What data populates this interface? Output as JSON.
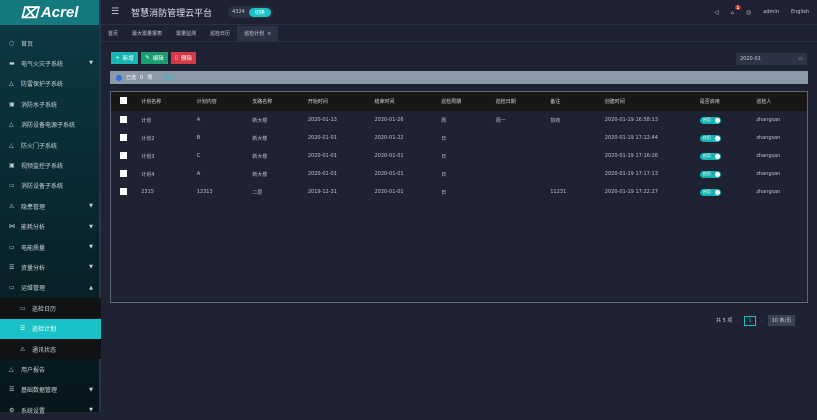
{
  "app": {
    "logo": "Acrel",
    "title": "智慧消防管理云平台",
    "count": "4324",
    "count_badge": "切换"
  },
  "header": {
    "user": "admin",
    "language": "English",
    "notification_count": "1"
  },
  "sidebar": {
    "items": [
      {
        "label": "首页",
        "icon": "home",
        "y": 43
      },
      {
        "label": "电气火灾子系统",
        "icon": "fire",
        "chevron": true
      },
      {
        "label": "防雷保护子系统",
        "icon": "shield"
      },
      {
        "label": "消防水子系统",
        "icon": "water"
      },
      {
        "label": "消防设备电源子系统",
        "icon": "power"
      },
      {
        "label": "防火门子系统",
        "icon": "door"
      },
      {
        "label": "视频监控子系统",
        "icon": "video"
      },
      {
        "label": "消防设备子系统",
        "icon": "camera"
      },
      {
        "label": "隐患管理",
        "icon": "warning",
        "chevron": true
      },
      {
        "label": "能耗分析",
        "icon": "chart",
        "chevron": true
      },
      {
        "label": "电能质量",
        "icon": "meter",
        "chevron": true
      },
      {
        "label": "资量分析",
        "icon": "list",
        "chevron": true
      },
      {
        "label": "运维管理",
        "icon": "tools",
        "chevron": true,
        "expanded": true
      },
      {
        "label": "巡检日历",
        "icon": "calendar",
        "sub": true
      },
      {
        "label": "巡检计划",
        "icon": "plan",
        "sub": true,
        "active": true
      },
      {
        "label": "通讯状态",
        "icon": "signal",
        "sub": true
      },
      {
        "label": "用户报告",
        "icon": "report"
      },
      {
        "label": "基础数据管理",
        "icon": "database",
        "chevron": true
      },
      {
        "label": "系统设置",
        "icon": "gear",
        "chevron": true
      }
    ]
  },
  "tabs": [
    {
      "label": "首页"
    },
    {
      "label": "最大需量报表"
    },
    {
      "label": "需量监测"
    },
    {
      "label": "巡检日历"
    },
    {
      "label": "巡检计划",
      "active": true
    }
  ],
  "toolbar": {
    "add": "新增",
    "edit": "编辑",
    "delete": "删除",
    "date": "2020-01"
  },
  "alert": {
    "selected": "已选",
    "count": "0",
    "unit": "项",
    "clear": "清空"
  },
  "table": {
    "columns": [
      "计划名称",
      "计划内容",
      "支路名称",
      "开始时间",
      "结束时间",
      "巡检周期",
      "巡检日期",
      "备注",
      "创建时间",
      "是否启用",
      "巡检人"
    ],
    "rows": [
      [
        "计划",
        "A",
        "新大楼",
        "2020-01-13",
        "2020-01-26",
        "周",
        "周一",
        "协商",
        "2020-01-19 16:58:13",
        "启用",
        "zhangsan"
      ],
      [
        "计划2",
        "B",
        "新大楼",
        "2020-01-01",
        "2020-01-22",
        "日",
        "",
        "",
        "2020-01-19 17:12:44",
        "启用",
        "zhangsan"
      ],
      [
        "计划3",
        "C",
        "新大楼",
        "2020-01-01",
        "2020-01-01",
        "日",
        "",
        "",
        "2020-01-19 17:16:26",
        "启用",
        "zhangsan"
      ],
      [
        "计划4",
        "A",
        "新大楼",
        "2020-01-01",
        "2020-01-01",
        "日",
        "",
        "",
        "2020-01-19 17:17:13",
        "启用",
        "zhangsan"
      ],
      [
        "2315",
        "12313",
        "二层",
        "2019-12-31",
        "2020-01-01",
        "日",
        "",
        "11231",
        "2020-01-19 17:22:27",
        "启用",
        "zhangsan"
      ]
    ]
  },
  "pagination": {
    "total": "共 5 项",
    "page": "1",
    "page_size": "10 条/页"
  }
}
